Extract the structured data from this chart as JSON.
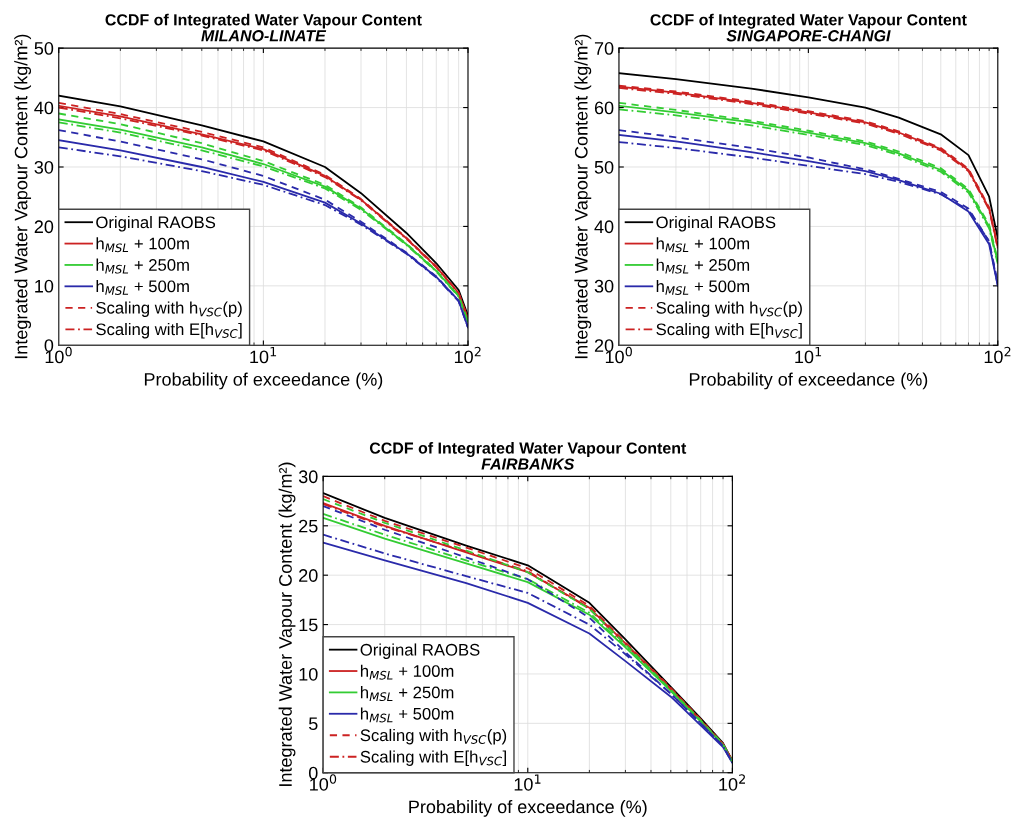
{
  "chart_data": [
    {
      "type": "line",
      "title": "CCDF of Integrated Water Vapour Content",
      "subtitle": "MILANO-LINATE",
      "xlabel": "Probability of exceedance (%)",
      "ylabel": "Integrated Water Vapour Content (kg/m²)",
      "x": [
        1,
        2,
        5,
        10,
        20,
        30,
        50,
        70,
        90,
        100
      ],
      "log": "x",
      "xlim": [
        1,
        100
      ],
      "xticks": [
        {
          "value": 1,
          "label": "10$^{0}$"
        },
        {
          "value": 10,
          "label": "10$^{1}$"
        },
        {
          "value": 100,
          "label": "10$^{2}$"
        }
      ],
      "ylim": [
        0,
        50
      ],
      "yticks": [
        0,
        10,
        20,
        30,
        40,
        50
      ],
      "grid": true,
      "legend": "bottom left",
      "marker": "none",
      "series": [
        {
          "name": "Original RAOBS",
          "color": "#000000",
          "line_style": "solid",
          "values": [
            42,
            40.2,
            37,
            34.3,
            30,
            25.6,
            18.9,
            13.8,
            9.3,
            5
          ]
        },
        {
          "name": "h$_{MSL}$ + 100m",
          "color": "#cc2222",
          "line_style": "solid",
          "values": [
            40.3,
            38.5,
            35.5,
            33,
            28.5,
            24.5,
            18,
            13.2,
            8.8,
            4.5
          ]
        },
        {
          "name": "h$_{MSL}$ + 250m",
          "color": "#33cc33",
          "line_style": "solid",
          "values": [
            38,
            36.3,
            33.3,
            30.5,
            26.7,
            23,
            17,
            12.5,
            8.3,
            4
          ]
        },
        {
          "name": "h$_{MSL}$ + 500m",
          "color": "#2a2aaa",
          "line_style": "solid",
          "values": [
            34.5,
            32.8,
            30,
            27.5,
            24,
            20.5,
            15.5,
            11.5,
            7.5,
            3
          ]
        },
        {
          "name": "Scaling with h$_{VSC}$(p)",
          "color": "#cc2222",
          "line_style": "dashed",
          "values": [
            40.8,
            38.9,
            35.9,
            33.3,
            28.7,
            24.6,
            18.1,
            13.3,
            8.8,
            4.5
          ]
        },
        {
          "name": "Scaling with E[h$_{VSC}$]",
          "color": "#cc2222",
          "line_style": "dashdot",
          "values": [
            40,
            38.2,
            35.3,
            32.8,
            28.3,
            24.4,
            17.9,
            13.1,
            8.7,
            4.4
          ]
        },
        {
          "color": "#33cc33",
          "line_style": "dashed",
          "values": [
            39,
            37.2,
            34,
            31,
            27,
            23.2,
            17.1,
            12.6,
            8.3,
            4
          ]
        },
        {
          "color": "#33cc33",
          "line_style": "dashdot",
          "values": [
            37.5,
            35.8,
            32.8,
            30.1,
            26.4,
            22.8,
            16.9,
            12.4,
            8.2,
            3.9
          ]
        },
        {
          "color": "#2a2aaa",
          "line_style": "dashed",
          "values": [
            36.2,
            34.3,
            31.3,
            28.5,
            24.5,
            20.8,
            15.6,
            11.6,
            7.5,
            3
          ]
        },
        {
          "color": "#2a2aaa",
          "line_style": "dashdot",
          "values": [
            33.3,
            31.8,
            29.3,
            27,
            23.6,
            20.3,
            15.4,
            11.4,
            7.4,
            3
          ]
        }
      ]
    },
    {
      "type": "line",
      "title": "CCDF of Integrated Water Vapour Content",
      "subtitle": "SINGAPORE-CHANGI",
      "xlabel": "Probability of exceedance (%)",
      "ylabel": "Integrated Water Vapour Content (kg/m²)",
      "x": [
        1,
        2,
        5,
        10,
        20,
        30,
        50,
        70,
        90,
        100
      ],
      "log": "x",
      "xlim": [
        1,
        100
      ],
      "xticks": [
        {
          "value": 1,
          "label": "10$^{0}$"
        },
        {
          "value": 10,
          "label": "10$^{1}$"
        },
        {
          "value": 100,
          "label": "10$^{2}$"
        }
      ],
      "ylim": [
        20,
        70
      ],
      "yticks": [
        20,
        30,
        40,
        50,
        60,
        70
      ],
      "grid": true,
      "legend": "bottom left",
      "marker": "none",
      "series": [
        {
          "name": "Original RAOBS",
          "color": "#000000",
          "line_style": "solid",
          "values": [
            65.8,
            64.8,
            63.2,
            61.7,
            60,
            58.3,
            55.5,
            52,
            45,
            38
          ]
        },
        {
          "name": "h$_{MSL}$ + 100m",
          "color": "#cc2222",
          "line_style": "solid",
          "values": [
            63.5,
            62.5,
            60.8,
            59.2,
            57.5,
            55.8,
            53,
            49.5,
            43,
            36.5
          ]
        },
        {
          "name": "h$_{MSL}$ + 250m",
          "color": "#33cc33",
          "line_style": "solid",
          "values": [
            60.3,
            59.2,
            57.5,
            55.8,
            54,
            52.3,
            49.5,
            46,
            40,
            34
          ]
        },
        {
          "name": "h$_{MSL}$ + 500m",
          "color": "#2a2aaa",
          "line_style": "solid",
          "values": [
            55.4,
            54.3,
            52.5,
            51,
            49.3,
            47.8,
            45.5,
            42.5,
            37,
            30
          ]
        },
        {
          "name": "Scaling with h$_{VSC}$(p)",
          "color": "#cc2222",
          "line_style": "dashed",
          "values": [
            63.7,
            62.7,
            61,
            59.4,
            57.7,
            56,
            53.2,
            49.7,
            43.2,
            36.7
          ]
        },
        {
          "name": "Scaling with E[h$_{VSC}$]",
          "color": "#cc2222",
          "line_style": "dashdot",
          "values": [
            63.3,
            62.3,
            60.6,
            59,
            57.3,
            55.6,
            52.8,
            49.3,
            42.8,
            36.3
          ]
        },
        {
          "color": "#33cc33",
          "line_style": "dashed",
          "values": [
            60.8,
            59.6,
            57.8,
            56.1,
            54.3,
            52.6,
            49.8,
            46.3,
            40.3,
            34.3
          ]
        },
        {
          "color": "#33cc33",
          "line_style": "dashdot",
          "values": [
            59.7,
            58.7,
            57,
            55.4,
            53.7,
            52,
            49.2,
            45.7,
            39.7,
            33.7
          ]
        },
        {
          "color": "#2a2aaa",
          "line_style": "dashed",
          "values": [
            56.2,
            55,
            53.2,
            51.6,
            49.6,
            48,
            45.8,
            43,
            37.5,
            30.5
          ]
        },
        {
          "color": "#2a2aaa",
          "line_style": "dashdot",
          "values": [
            54.2,
            53.2,
            51.6,
            50.2,
            48.8,
            47.5,
            45.4,
            42.8,
            37.5,
            30
          ]
        }
      ]
    },
    {
      "type": "line",
      "title": "CCDF of Integrated Water Vapour Content",
      "subtitle": "FAIRBANKS",
      "xlabel": "Probability of exceedance (%)",
      "ylabel": "Integrated Water Vapour Content (kg/m²)",
      "x": [
        1,
        2,
        5,
        10,
        20,
        30,
        50,
        70,
        90,
        100
      ],
      "log": "x",
      "xlim": [
        1,
        100
      ],
      "xticks": [
        {
          "value": 1,
          "label": "10$^{0}$"
        },
        {
          "value": 10,
          "label": "10$^{1}$"
        },
        {
          "value": 100,
          "label": "10$^{2}$"
        }
      ],
      "ylim": [
        0,
        30
      ],
      "yticks": [
        0,
        5,
        10,
        15,
        20,
        25,
        30
      ],
      "grid": true,
      "legend": "bottom left",
      "marker": "none",
      "series": [
        {
          "name": "Original RAOBS",
          "color": "#000000",
          "line_style": "solid",
          "values": [
            28.3,
            25.8,
            23,
            21,
            17.2,
            13.5,
            8.7,
            5.5,
            3,
            1.2
          ]
        },
        {
          "name": "h$_{MSL}$ + 100m",
          "color": "#cc2222",
          "line_style": "solid",
          "values": [
            27.3,
            25,
            22.3,
            20.3,
            16.7,
            13.1,
            8.5,
            5.3,
            2.9,
            1.2
          ]
        },
        {
          "name": "h$_{MSL}$ + 250m",
          "color": "#33cc33",
          "line_style": "solid",
          "values": [
            25.8,
            23.7,
            21.2,
            19.3,
            16,
            12.7,
            8.3,
            5.2,
            2.8,
            1.1
          ]
        },
        {
          "name": "h$_{MSL}$ + 500m",
          "color": "#2a2aaa",
          "line_style": "solid",
          "values": [
            23.3,
            21.5,
            19.2,
            17.2,
            14.1,
            11.3,
            7.7,
            4.8,
            2.6,
            1
          ]
        },
        {
          "name": "Scaling with h$_{VSC}$(p)",
          "color": "#cc2222",
          "line_style": "dashed",
          "values": [
            28,
            25.5,
            22.8,
            20.7,
            16.9,
            13.2,
            8.6,
            5.4,
            2.9,
            1.2
          ]
        },
        {
          "name": "Scaling with E[h$_{VSC}$]",
          "color": "#cc2222",
          "line_style": "dashdot",
          "values": [
            27.2,
            24.9,
            22.4,
            20.4,
            16.6,
            13,
            8.5,
            5.3,
            2.9,
            1.2
          ]
        },
        {
          "color": "#33cc33",
          "line_style": "dashed",
          "values": [
            27.7,
            25.3,
            22.5,
            20.3,
            16.6,
            13,
            8.4,
            5.3,
            2.9,
            1.1
          ]
        },
        {
          "color": "#33cc33",
          "line_style": "dashdot",
          "values": [
            26.2,
            24.1,
            21.5,
            19.6,
            16.2,
            12.8,
            8.3,
            5.2,
            2.8,
            1.1
          ]
        },
        {
          "color": "#2a2aaa",
          "line_style": "dashed",
          "values": [
            27,
            24.6,
            21.8,
            19.6,
            15.7,
            12.2,
            8,
            5,
            2.7,
            1
          ]
        },
        {
          "color": "#2a2aaa",
          "line_style": "dashdot",
          "values": [
            24.1,
            22.2,
            19.9,
            18.2,
            15,
            12,
            8,
            5,
            2.7,
            1
          ]
        }
      ]
    }
  ]
}
